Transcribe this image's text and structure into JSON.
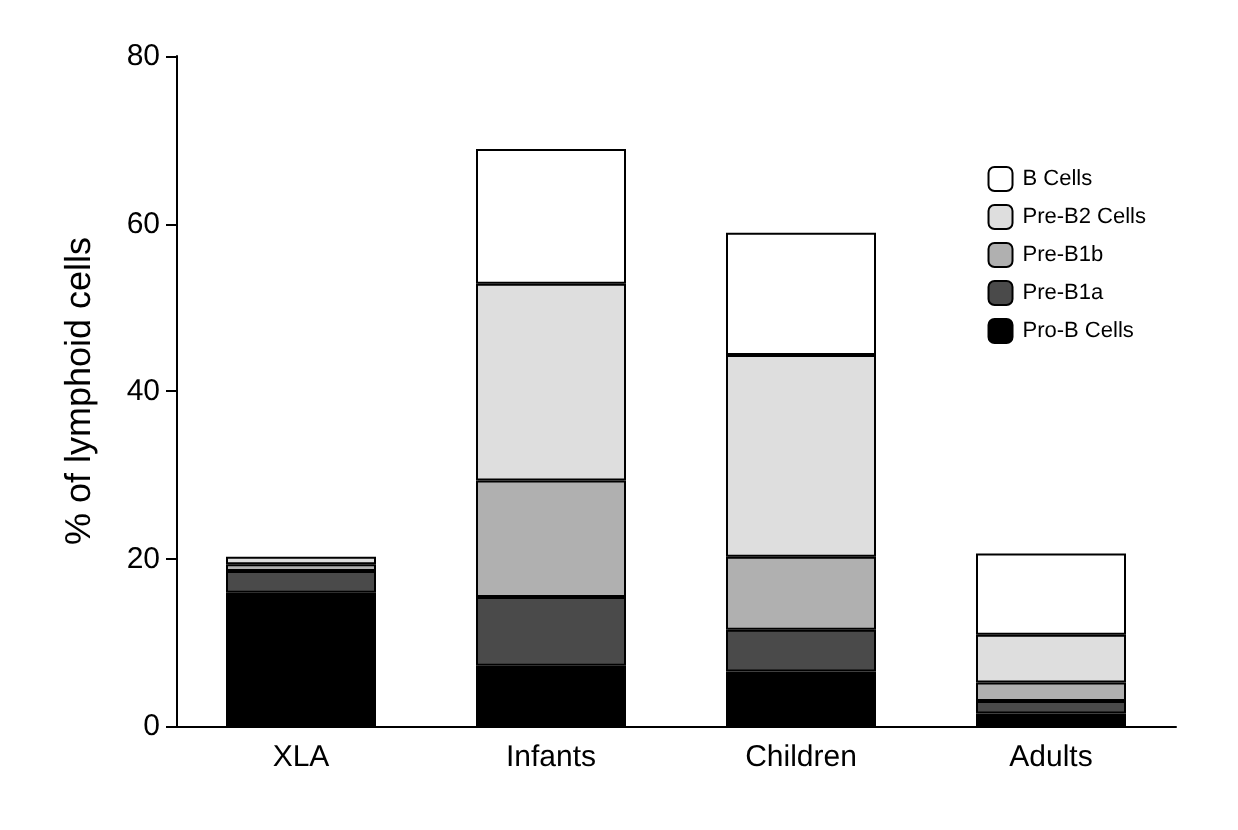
{
  "chart_data": {
    "type": "bar",
    "stacked": true,
    "ylabel": "% of lymphoid cells",
    "categories": [
      "XLA",
      "Infants",
      "Children",
      "Adults"
    ],
    "series": [
      {
        "name": "Pro-B Cells",
        "color": "#000000",
        "values": [
          15.9,
          7.2,
          6.5,
          1.5
        ]
      },
      {
        "name": "Pre-B1a",
        "color": "#4a4a4a",
        "values": [
          2.6,
          8.2,
          5.0,
          1.5
        ]
      },
      {
        "name": "Pre-B1b",
        "color": "#b0b0b0",
        "values": [
          0.8,
          13.9,
          8.7,
          2.2
        ]
      },
      {
        "name": "Pre-B2 Cells",
        "color": "#dedede",
        "values": [
          0.9,
          23.5,
          24.1,
          5.7
        ]
      },
      {
        "name": "B Cells",
        "color": "#ffffff",
        "values": [
          null,
          16.1,
          14.6,
          9.7
        ]
      }
    ],
    "ylim": [
      0,
      80
    ],
    "yticks": [
      0,
      20,
      40,
      60,
      80
    ],
    "grid": false,
    "legend": "top right"
  }
}
